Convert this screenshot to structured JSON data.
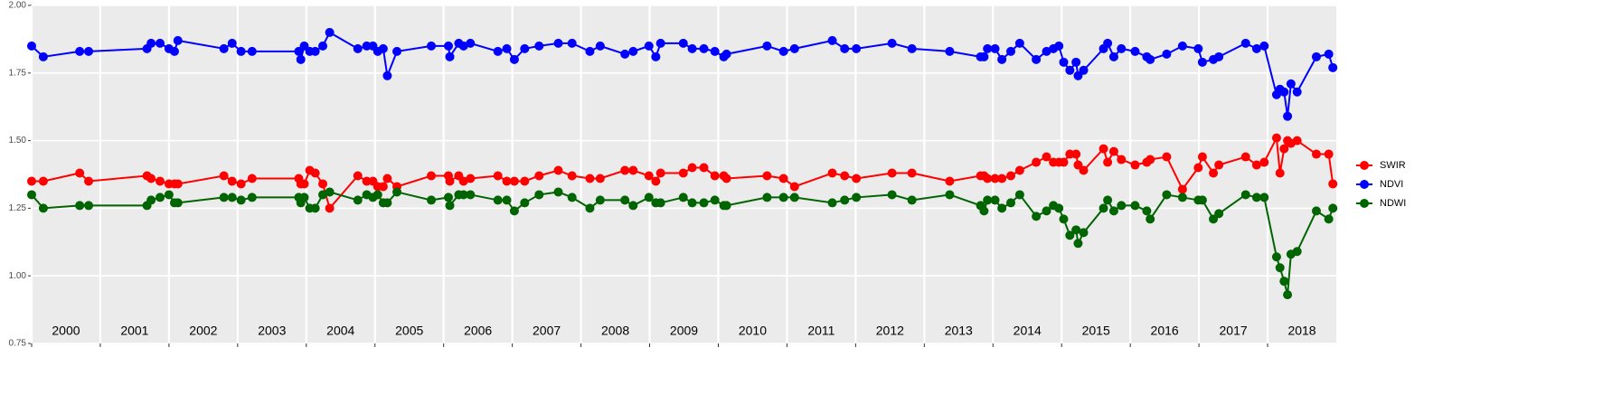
{
  "chart_data": {
    "type": "line",
    "year_labels": [
      "2000",
      "2001",
      "2002",
      "2003",
      "2004",
      "2005",
      "2006",
      "2007",
      "2008",
      "2009",
      "2010",
      "2011",
      "2012",
      "2013",
      "2014",
      "2015",
      "2016",
      "2017",
      "2018"
    ],
    "x": [
      2000.0,
      2000.17,
      2000.7,
      2000.83,
      2001.68,
      2001.74,
      2001.87,
      2002.0,
      2002.08,
      2002.13,
      2002.8,
      2002.92,
      2003.05,
      2003.21,
      2003.89,
      2003.92,
      2003.97,
      2004.05,
      2004.13,
      2004.24,
      2004.34,
      2004.75,
      2004.88,
      2004.97,
      2005.04,
      2005.12,
      2005.18,
      2005.32,
      2005.82,
      2006.07,
      2006.09,
      2006.22,
      2006.29,
      2006.39,
      2006.79,
      2006.92,
      2007.03,
      2007.18,
      2007.39,
      2007.67,
      2007.87,
      2008.13,
      2008.28,
      2008.64,
      2008.76,
      2008.99,
      2009.09,
      2009.16,
      2009.49,
      2009.62,
      2009.79,
      2009.95,
      2010.08,
      2010.12,
      2010.71,
      2010.95,
      2011.11,
      2011.66,
      2011.84,
      2012.01,
      2012.53,
      2012.82,
      2013.37,
      2013.82,
      2013.87,
      2013.92,
      2014.03,
      2014.13,
      2014.26,
      2014.39,
      2014.63,
      2014.78,
      2014.88,
      2014.96,
      2015.03,
      2015.12,
      2015.21,
      2015.24,
      2015.32,
      2015.61,
      2015.67,
      2015.76,
      2015.87,
      2016.07,
      2016.24,
      2016.29,
      2016.53,
      2016.76,
      2016.99,
      2017.05,
      2017.21,
      2017.29,
      2017.68,
      2017.84,
      2017.95,
      2018.13,
      2018.18,
      2018.24,
      2018.29,
      2018.34,
      2018.43,
      2018.71,
      2018.89,
      2018.95
    ],
    "series": [
      {
        "name": "SWIR",
        "color": "#ff0000",
        "values": [
          1.35,
          1.35,
          1.38,
          1.35,
          1.37,
          1.36,
          1.35,
          1.34,
          1.34,
          1.34,
          1.37,
          1.35,
          1.34,
          1.36,
          1.36,
          1.34,
          1.34,
          1.39,
          1.38,
          1.34,
          1.25,
          1.37,
          1.35,
          1.35,
          1.33,
          1.33,
          1.36,
          1.33,
          1.37,
          1.37,
          1.35,
          1.37,
          1.35,
          1.36,
          1.37,
          1.35,
          1.35,
          1.35,
          1.37,
          1.39,
          1.37,
          1.36,
          1.36,
          1.39,
          1.39,
          1.37,
          1.35,
          1.38,
          1.38,
          1.4,
          1.4,
          1.37,
          1.37,
          1.36,
          1.37,
          1.36,
          1.33,
          1.38,
          1.37,
          1.36,
          1.38,
          1.38,
          1.35,
          1.37,
          1.37,
          1.36,
          1.36,
          1.36,
          1.37,
          1.39,
          1.42,
          1.44,
          1.42,
          1.42,
          1.42,
          1.45,
          1.45,
          1.41,
          1.39,
          1.47,
          1.42,
          1.46,
          1.43,
          1.41,
          1.42,
          1.43,
          1.44,
          1.32,
          1.4,
          1.44,
          1.38,
          1.41,
          1.44,
          1.41,
          1.42,
          1.51,
          1.38,
          1.47,
          1.5,
          1.49,
          1.5,
          1.45,
          1.45,
          1.34
        ]
      },
      {
        "name": "NDVI",
        "color": "#0000ff",
        "values": [
          1.85,
          1.81,
          1.83,
          1.83,
          1.84,
          1.86,
          1.86,
          1.84,
          1.83,
          1.87,
          1.84,
          1.86,
          1.83,
          1.83,
          1.83,
          1.8,
          1.85,
          1.83,
          1.83,
          1.85,
          1.9,
          1.84,
          1.85,
          1.85,
          1.83,
          1.84,
          1.74,
          1.83,
          1.85,
          1.85,
          1.81,
          1.86,
          1.85,
          1.86,
          1.83,
          1.84,
          1.8,
          1.84,
          1.85,
          1.86,
          1.86,
          1.83,
          1.85,
          1.82,
          1.83,
          1.85,
          1.81,
          1.86,
          1.86,
          1.84,
          1.84,
          1.83,
          1.81,
          1.82,
          1.85,
          1.83,
          1.84,
          1.87,
          1.84,
          1.84,
          1.86,
          1.84,
          1.83,
          1.81,
          1.81,
          1.84,
          1.84,
          1.8,
          1.83,
          1.86,
          1.8,
          1.83,
          1.84,
          1.85,
          1.79,
          1.76,
          1.79,
          1.74,
          1.76,
          1.84,
          1.86,
          1.81,
          1.84,
          1.83,
          1.81,
          1.8,
          1.82,
          1.85,
          1.84,
          1.79,
          1.8,
          1.81,
          1.86,
          1.84,
          1.85,
          1.67,
          1.69,
          1.68,
          1.59,
          1.71,
          1.68,
          1.81,
          1.82,
          1.77
        ]
      },
      {
        "name": "NDWI",
        "color": "#006400",
        "values": [
          1.3,
          1.25,
          1.26,
          1.26,
          1.26,
          1.28,
          1.29,
          1.3,
          1.27,
          1.27,
          1.29,
          1.29,
          1.28,
          1.29,
          1.29,
          1.27,
          1.29,
          1.25,
          1.25,
          1.3,
          1.31,
          1.28,
          1.3,
          1.29,
          1.3,
          1.27,
          1.27,
          1.31,
          1.28,
          1.29,
          1.26,
          1.3,
          1.3,
          1.3,
          1.28,
          1.28,
          1.24,
          1.27,
          1.3,
          1.31,
          1.29,
          1.25,
          1.28,
          1.28,
          1.26,
          1.29,
          1.27,
          1.27,
          1.29,
          1.27,
          1.27,
          1.28,
          1.26,
          1.26,
          1.29,
          1.29,
          1.29,
          1.27,
          1.28,
          1.29,
          1.3,
          1.28,
          1.3,
          1.26,
          1.24,
          1.28,
          1.28,
          1.25,
          1.27,
          1.3,
          1.22,
          1.24,
          1.26,
          1.25,
          1.21,
          1.15,
          1.17,
          1.12,
          1.16,
          1.25,
          1.28,
          1.24,
          1.26,
          1.26,
          1.24,
          1.21,
          1.3,
          1.29,
          1.28,
          1.28,
          1.21,
          1.23,
          1.3,
          1.29,
          1.29,
          1.07,
          1.03,
          0.98,
          0.93,
          1.08,
          1.09,
          1.24,
          1.21,
          1.25
        ]
      }
    ],
    "xlim": [
      2000,
      2019
    ],
    "xticks": [
      2000,
      2001,
      2002,
      2003,
      2004,
      2005,
      2006,
      2007,
      2008,
      2009,
      2010,
      2011,
      2012,
      2013,
      2014,
      2015,
      2016,
      2017,
      2018
    ],
    "ylim": [
      0.75,
      2.0
    ],
    "yticks": [
      {
        "value": 0.75,
        "label": "0.75"
      },
      {
        "value": 1.0,
        "label": "1.00"
      },
      {
        "value": 1.25,
        "label": "1.25"
      },
      {
        "value": 1.5,
        "label": "1.50"
      },
      {
        "value": 1.75,
        "label": "1.75"
      },
      {
        "value": 2.0,
        "label": "2.00"
      }
    ],
    "grid": true,
    "legend": "right"
  }
}
